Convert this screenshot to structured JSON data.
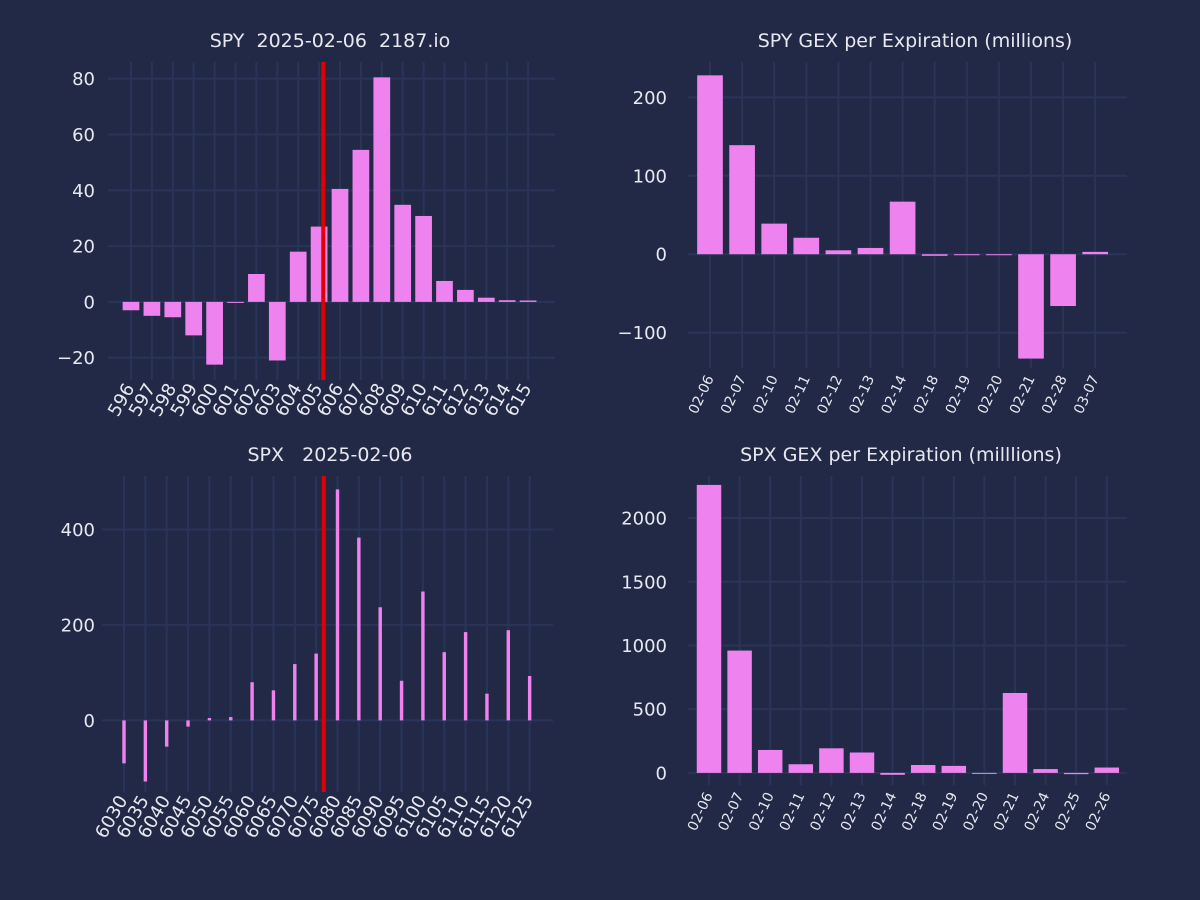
{
  "colors": {
    "background": "#212946",
    "grid": "#2A3459",
    "bar": "#EE82EE",
    "spot_line": "#E00000",
    "text": "#E8E8F0"
  },
  "chart_data": [
    {
      "id": "spy-strike",
      "type": "bar",
      "title": "SPY  2025-02-06  2187.io",
      "categories": [
        "596",
        "597",
        "598",
        "599",
        "600",
        "601",
        "602",
        "603",
        "604",
        "605",
        "606",
        "607",
        "608",
        "609",
        "610",
        "611",
        "612",
        "613",
        "614",
        "615"
      ],
      "values": [
        -3,
        -5,
        -5.5,
        -12,
        -22.5,
        -0.3,
        10,
        -21,
        18,
        27,
        40.5,
        54.5,
        80.5,
        34.8,
        30.8,
        7.5,
        4.3,
        1.5,
        0.6,
        0.5
      ],
      "yticks": [
        -20,
        0,
        20,
        40,
        60,
        80
      ],
      "ylim": [
        -28,
        86
      ],
      "spot_line": 605.2,
      "grid": true,
      "xlabel": "",
      "ylabel": ""
    },
    {
      "id": "spy-expiration",
      "type": "bar",
      "title": "SPY GEX per Expiration (millions)",
      "categories": [
        "02-06",
        "02-07",
        "02-10",
        "02-11",
        "02-12",
        "02-13",
        "02-14",
        "02-18",
        "02-19",
        "02-20",
        "02-21",
        "02-28",
        "03-07"
      ],
      "values": [
        228,
        139,
        39,
        21,
        5,
        8,
        67,
        -2,
        -1,
        0,
        -133,
        -66,
        3
      ],
      "yticks": [
        -100,
        0,
        100,
        200
      ],
      "ylim": [
        -145,
        245
      ],
      "grid": true,
      "xlabel": "",
      "ylabel": ""
    },
    {
      "id": "spx-strike",
      "type": "bar",
      "title": "SPX   2025-02-06",
      "categories": [
        "6030",
        "6035",
        "6040",
        "6045",
        "6050",
        "6055",
        "6060",
        "6065",
        "6070",
        "6075",
        "6080",
        "6085",
        "6090",
        "6095",
        "6100",
        "6105",
        "6110",
        "6115",
        "6120",
        "6125"
      ],
      "values": [
        -90,
        -128,
        -55,
        -13,
        5,
        7,
        80,
        63,
        118,
        140,
        484,
        383,
        237,
        83,
        270,
        143,
        185,
        56,
        189,
        93
      ],
      "yticks": [
        0,
        200,
        400
      ],
      "ylim": [
        -150,
        512
      ],
      "spot_line": 6076.8,
      "grid": true,
      "xlabel": "",
      "ylabel": ""
    },
    {
      "id": "spx-expiration",
      "type": "bar",
      "title": "SPX GEX per Expiration (milllions)",
      "categories": [
        "02-06",
        "02-07",
        "02-10",
        "02-11",
        "02-12",
        "02-13",
        "02-14",
        "02-18",
        "02-19",
        "02-20",
        "02-21",
        "02-24",
        "02-25",
        "02-26"
      ],
      "values": [
        2260,
        960,
        180,
        68,
        193,
        160,
        -15,
        62,
        55,
        -5,
        627,
        30,
        -10,
        42
      ],
      "yticks": [
        0,
        500,
        1000,
        1500,
        2000
      ],
      "ylim": [
        -95,
        2330
      ],
      "grid": true,
      "xlabel": "",
      "ylabel": ""
    }
  ]
}
